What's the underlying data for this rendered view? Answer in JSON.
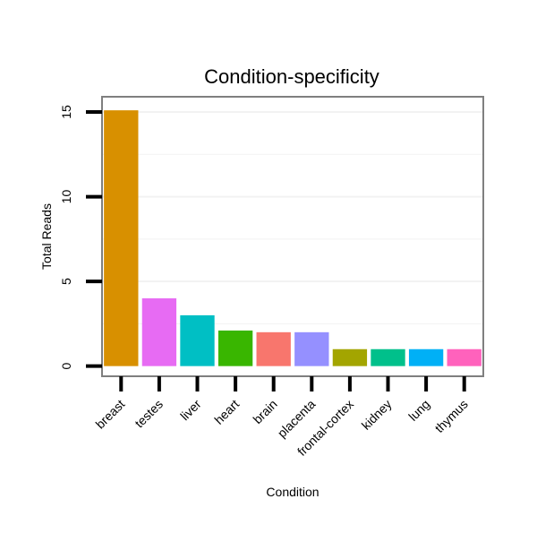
{
  "chart_data": {
    "type": "bar",
    "title": "Condition-specificity",
    "xlabel": "Condition",
    "ylabel": "Total Reads",
    "categories": [
      "breast",
      "testes",
      "liver",
      "heart",
      "brain",
      "placenta",
      "frontal-cortex",
      "kidney",
      "lung",
      "thymus"
    ],
    "values": [
      15.1,
      4.0,
      3.0,
      2.1,
      2.0,
      2.0,
      1.0,
      1.0,
      1.0,
      1.0
    ],
    "colors": [
      "#D89000",
      "#E76BF3",
      "#00BFC4",
      "#39B600",
      "#F8766D",
      "#9590FF",
      "#A3A500",
      "#00C08B",
      "#00B0F6",
      "#FF62BC"
    ],
    "ylim": [
      -0.6,
      15.9
    ],
    "yticks": [
      0,
      5,
      10,
      15
    ],
    "grid": true,
    "legend": "none"
  }
}
